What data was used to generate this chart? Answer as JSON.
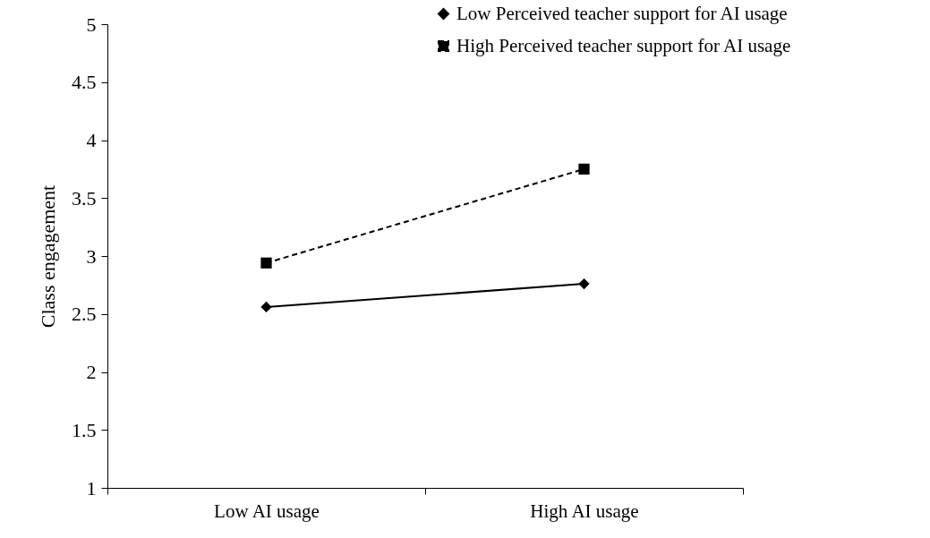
{
  "chart_data": {
    "type": "line",
    "ylabel": "Class engagement",
    "categories": [
      "Low AI usage",
      "High AI usage"
    ],
    "series": [
      {
        "name": "Low Perceived teacher support for AI usage",
        "color": "#000000",
        "values": [
          2.56,
          2.76
        ],
        "marker": "diamond",
        "line_style": "solid"
      },
      {
        "name": "High Perceived teacher support for AI usage",
        "color": "#000000",
        "values": [
          2.94,
          3.75
        ],
        "marker": "square",
        "line_style": "dashed"
      }
    ],
    "ylim": [
      1,
      5
    ],
    "yticks": [
      1,
      1.5,
      2,
      2.5,
      3,
      3.5,
      4,
      4.5,
      5
    ],
    "grid": false,
    "legend": "top right"
  }
}
